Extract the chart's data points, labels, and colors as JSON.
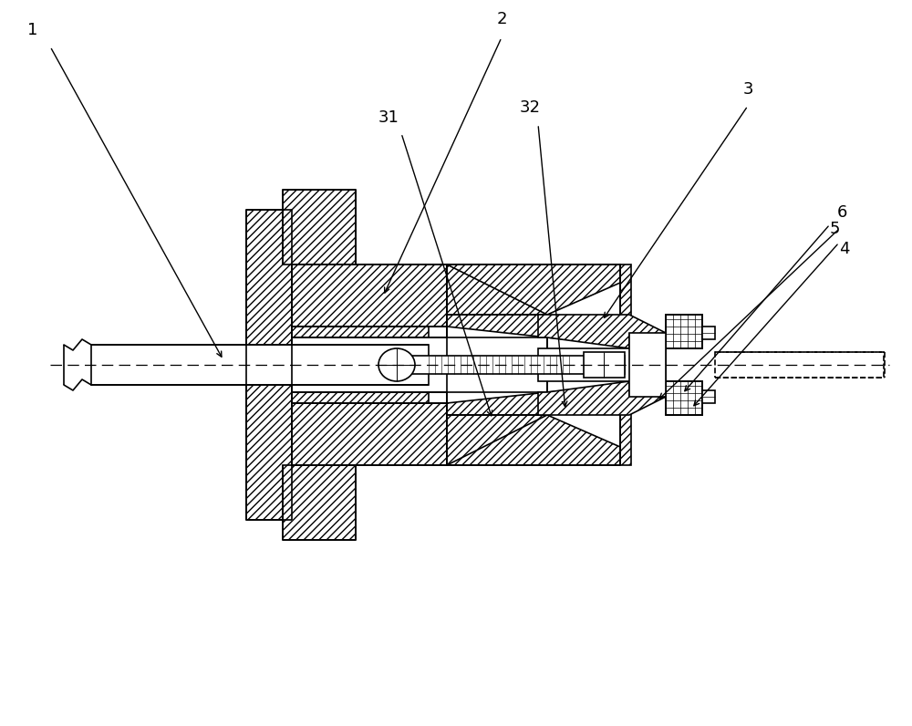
{
  "bg_color": "#ffffff",
  "line_color": "#000000",
  "figure_width": 10.0,
  "figure_height": 7.96,
  "dpi": 100,
  "label_fontsize": 13,
  "lw": 1.2
}
